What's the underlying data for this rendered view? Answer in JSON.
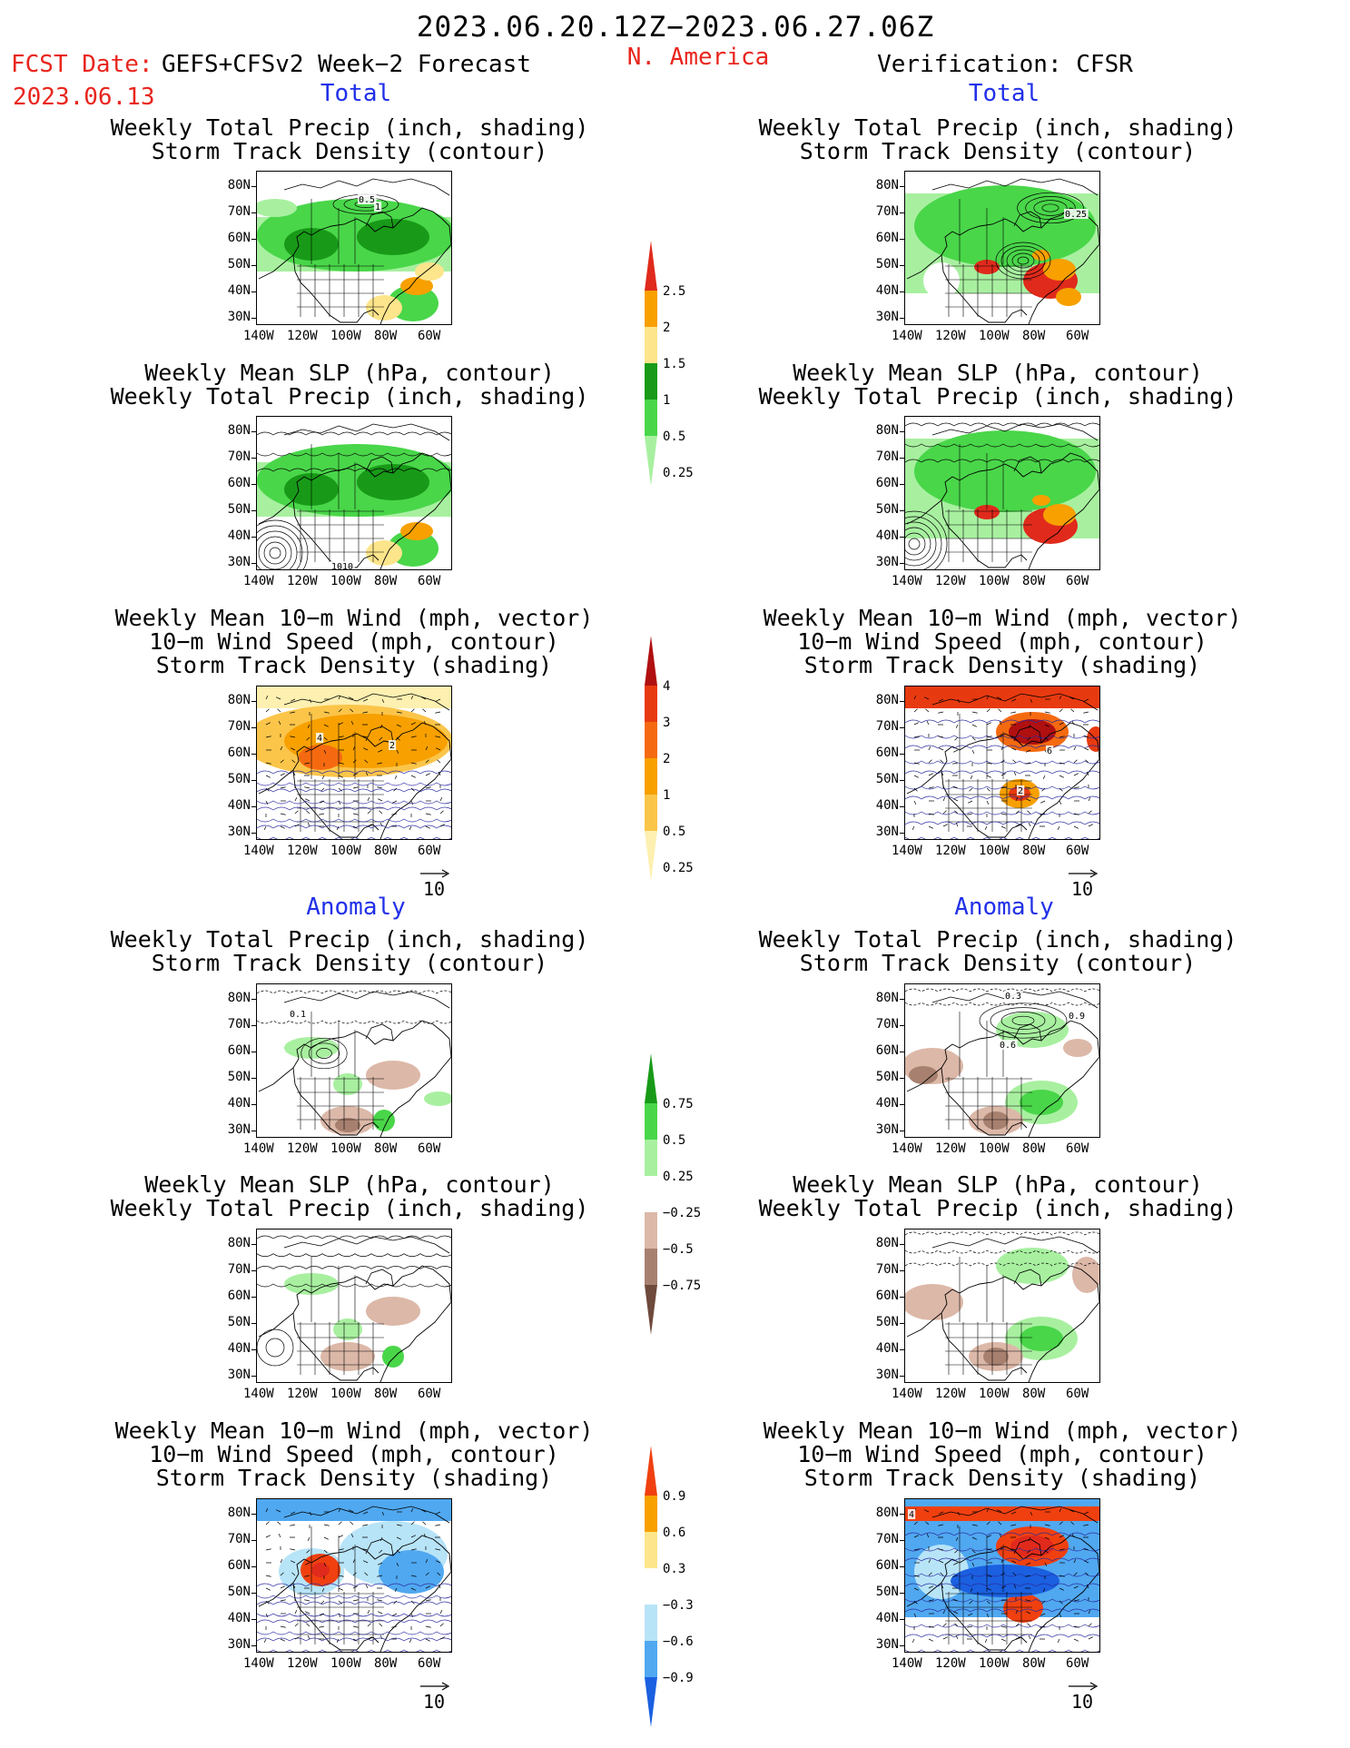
{
  "header": {
    "date_range": "2023.06.20.12Z−2023.06.27.06Z",
    "fcst_date_label": "FCST Date:",
    "fcst_date": "2023.06.13",
    "model": "GEFS+CFSv2 Week−2 Forecast",
    "region": "N. America",
    "verification": "Verification: CFSR"
  },
  "columns": {
    "left_total": "Total",
    "right_total": "Total",
    "left_anom": "Anomaly",
    "right_anom": "Anomaly"
  },
  "titles": {
    "p1": [
      "Weekly Total Precip (inch, shading)",
      "Storm Track Density (contour)"
    ],
    "p2": [
      "Weekly Mean SLP (hPa, contour)",
      "Weekly Total Precip (inch, shading)"
    ],
    "p3": [
      "Weekly Mean 10−m Wind (mph, vector)",
      "10−m Wind Speed (mph, contour)",
      "Storm Track Density (shading)"
    ]
  },
  "axes": {
    "lat": [
      "80N",
      "70N",
      "60N",
      "50N",
      "40N",
      "30N"
    ],
    "lon": [
      "140W",
      "120W",
      "100W",
      "80W",
      "60W"
    ]
  },
  "map_labels": {
    "l1_a": "0.5",
    "l1_b": "1",
    "r1_a": "0.25",
    "l2_a": "1010",
    "l3_a": "4",
    "l3_b": "2",
    "r3_a": "6",
    "r3_b": "2",
    "l4_a": "0.1",
    "r4_a": "0.3",
    "r4_b": "0.9",
    "r4_c": "0.6",
    "r6_a": "4"
  },
  "vector_ref": "10",
  "colorbars": {
    "precip_total": {
      "labels": [
        "2.5",
        "2",
        "1.5",
        "1",
        "0.5",
        "0.25"
      ],
      "colors": [
        "#e02a1c",
        "#f7a000",
        "#fde58b",
        "#189a18",
        "#49d649",
        "#a8f0a0"
      ]
    },
    "storm_total": {
      "labels": [
        "4",
        "3",
        "2",
        "1",
        "0.5",
        "0.25"
      ],
      "colors": [
        "#b01010",
        "#e83a10",
        "#f56a10",
        "#f7a000",
        "#fbc54a",
        "#fdf0b0"
      ]
    },
    "precip_anom": {
      "labels": [
        "0.75",
        "0.5",
        "0.25",
        "−0.25",
        "−0.5",
        "−0.75"
      ],
      "colors": [
        "#189a18",
        "#49d649",
        "#a8f0a0",
        "#ffffff",
        "#dcb8a8",
        "#a88070",
        "#6e4a3c"
      ]
    },
    "storm_anom": {
      "labels": [
        "0.9",
        "0.6",
        "0.3",
        "−0.3",
        "−0.6",
        "−0.9"
      ],
      "colors": [
        "#f04010",
        "#f7a000",
        "#fde58b",
        "#ffffff",
        "#b8e4f8",
        "#50a8f0",
        "#1a60e0"
      ]
    }
  }
}
